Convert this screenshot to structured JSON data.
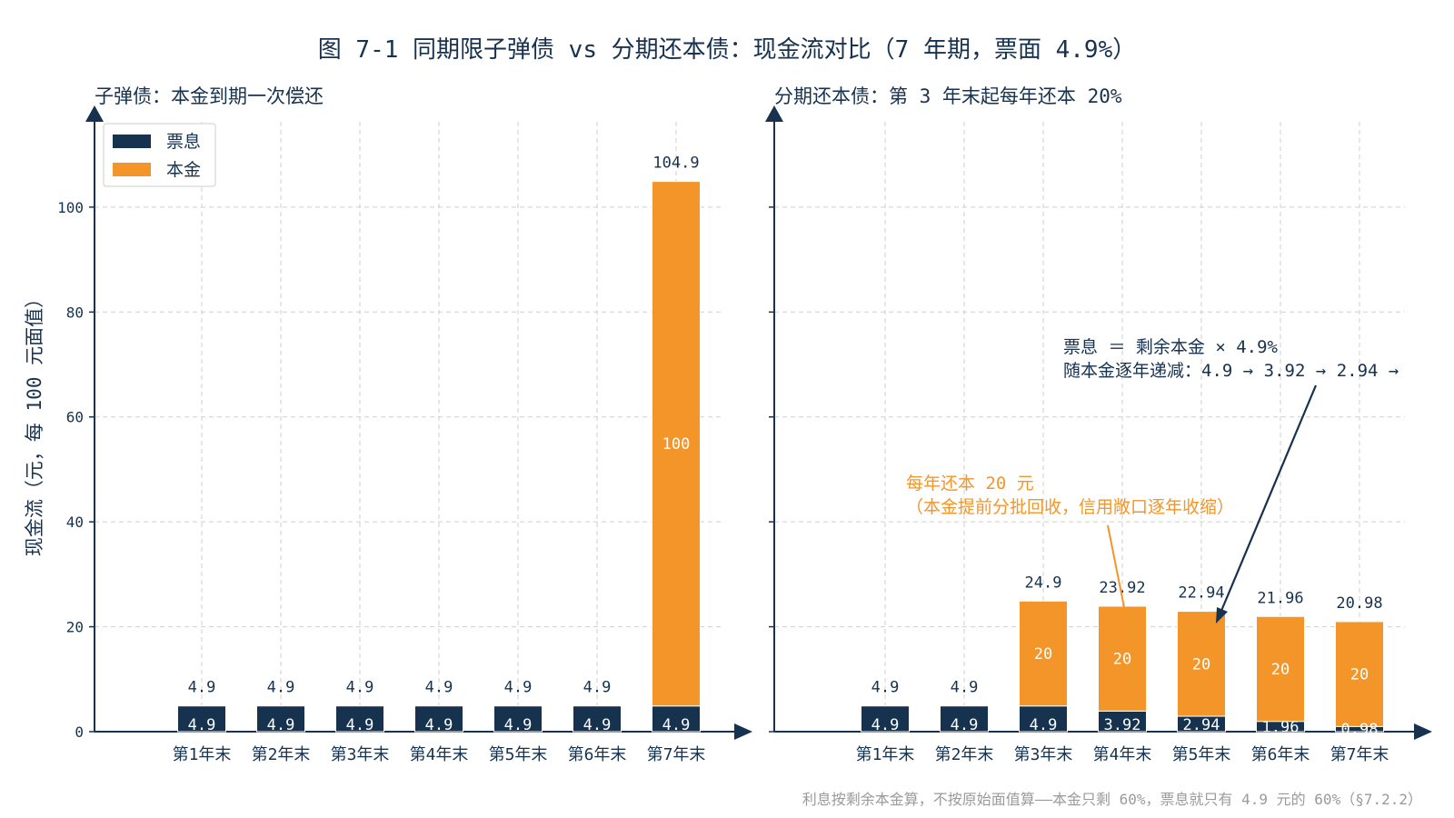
{
  "title": "图 7-1 同期限子弹债 vs 分期还本债：现金流对比（7 年期，票面 4.9%）",
  "ylabel": "现金流（元，每 100 元面值）",
  "footnote": "利息按剩余本金算，不按原始面值算——本金只剩 60%，票息就只有 4.9 元的 60%（§7.2.2）",
  "colors": {
    "coupon": "#16324f",
    "principal": "#f4952a",
    "grid": "#cfcfcf",
    "footnote": "#9a9a9a"
  },
  "legend": [
    {
      "name": "票息",
      "color": "#16324f"
    },
    {
      "name": "本金",
      "color": "#f4952a"
    }
  ],
  "annotations": {
    "coupon_line1": "票息 ＝ 剩余本金 × 4.9%",
    "coupon_line2": "随本金逐年递减：4.9 → 3.92 → 2.94 →",
    "principal_line1": "每年还本 20 元",
    "principal_line2": "（本金提前分批回收，信用敞口逐年收缩）"
  },
  "chart_data": [
    {
      "type": "bar",
      "stacked": true,
      "title": "子弹债：本金到期一次偿还",
      "categories": [
        "第1年末",
        "第2年末",
        "第3年末",
        "第4年末",
        "第5年末",
        "第6年末",
        "第7年末"
      ],
      "series": [
        {
          "name": "票息",
          "values": [
            4.9,
            4.9,
            4.9,
            4.9,
            4.9,
            4.9,
            4.9
          ]
        },
        {
          "name": "本金",
          "values": [
            0,
            0,
            0,
            0,
            0,
            0,
            100
          ]
        }
      ],
      "totals": [
        "4.9",
        "4.9",
        "4.9",
        "4.9",
        "4.9",
        "4.9",
        "104.9"
      ],
      "coupon_labels": [
        "4.9",
        "4.9",
        "4.9",
        "4.9",
        "4.9",
        "4.9",
        "4.9"
      ],
      "principal_labels": [
        "",
        "",
        "",
        "",
        "",
        "",
        "100"
      ],
      "yticks": [
        "0",
        "20",
        "40",
        "60",
        "80",
        "100"
      ],
      "ylim": [
        0,
        118
      ],
      "grid": true,
      "legend_position": "top-left"
    },
    {
      "type": "bar",
      "stacked": true,
      "title": "分期还本债：第 3 年末起每年还本 20%",
      "categories": [
        "第1年末",
        "第2年末",
        "第3年末",
        "第4年末",
        "第5年末",
        "第6年末",
        "第7年末"
      ],
      "series": [
        {
          "name": "票息",
          "values": [
            4.9,
            4.9,
            4.9,
            3.92,
            2.94,
            1.96,
            0.98
          ]
        },
        {
          "name": "本金",
          "values": [
            0,
            0,
            20,
            20,
            20,
            20,
            20
          ]
        }
      ],
      "totals": [
        "4.9",
        "4.9",
        "24.9",
        "23.92",
        "22.94",
        "21.96",
        "20.98"
      ],
      "coupon_labels": [
        "4.9",
        "4.9",
        "4.9",
        "3.92",
        "2.94",
        "1.96",
        "0.98"
      ],
      "principal_labels": [
        "",
        "",
        "20",
        "20",
        "20",
        "20",
        "20"
      ],
      "ylim": [
        0,
        118
      ],
      "grid": true
    }
  ]
}
